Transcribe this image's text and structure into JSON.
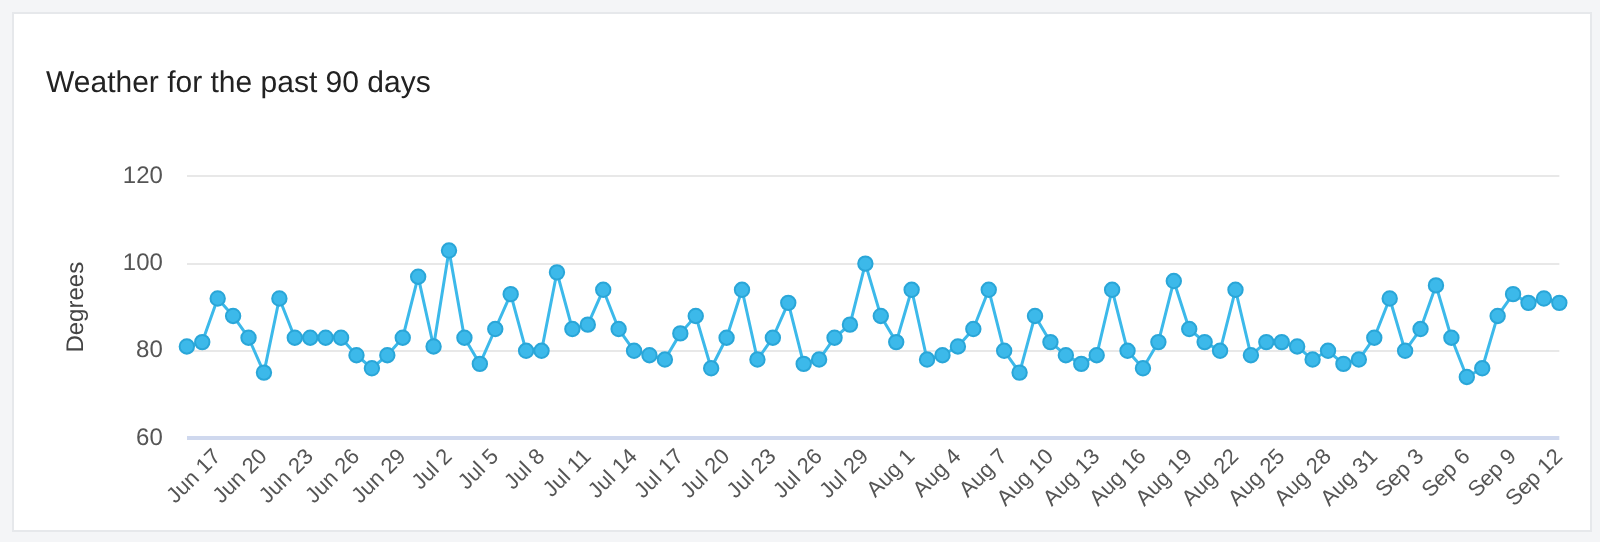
{
  "chart_data": {
    "type": "line",
    "title": "Weather for the past 90 days",
    "ylabel": "Degrees",
    "categories": [
      null,
      null,
      "Jun 17",
      null,
      null,
      "Jun 20",
      null,
      null,
      "Jun 23",
      null,
      null,
      "Jun 26",
      null,
      null,
      "Jun 29",
      null,
      null,
      "Jul 2",
      null,
      null,
      "Jul 5",
      null,
      null,
      "Jul 8",
      null,
      null,
      "Jul 11",
      null,
      null,
      "Jul 14",
      null,
      null,
      "Jul 17",
      null,
      null,
      "Jul 20",
      null,
      null,
      "Jul 23",
      null,
      null,
      "Jul 26",
      null,
      null,
      "Jul 29",
      null,
      null,
      "Aug 1",
      null,
      null,
      "Aug 4",
      null,
      null,
      "Aug 7",
      null,
      null,
      "Aug 10",
      null,
      null,
      "Aug 13",
      null,
      null,
      "Aug 16",
      null,
      null,
      "Aug 19",
      null,
      null,
      "Aug 22",
      null,
      null,
      "Aug 25",
      null,
      null,
      "Aug 28",
      null,
      null,
      "Aug 31",
      null,
      null,
      "Sep 3",
      null,
      null,
      "Sep 6",
      null,
      null,
      "Sep 9",
      null,
      null,
      "Sep 12"
    ],
    "series": [
      {
        "color": "#3cb9ea",
        "values": [
          81,
          82,
          92,
          88,
          83,
          75,
          92,
          83,
          83,
          83,
          83,
          79,
          76,
          79,
          83,
          97,
          81,
          103,
          83,
          77,
          85,
          93,
          80,
          80,
          98,
          85,
          86,
          94,
          85,
          80,
          79,
          78,
          84,
          88,
          76,
          83,
          94,
          78,
          83,
          91,
          77,
          78,
          83,
          86,
          100,
          88,
          82,
          94,
          78,
          79,
          81,
          85,
          94,
          80,
          75,
          88,
          82,
          79,
          77,
          79,
          94,
          80,
          76,
          82,
          96,
          85,
          82,
          80,
          94,
          79,
          82,
          82,
          81,
          78,
          80,
          77,
          78,
          83,
          92,
          80,
          85,
          95,
          83,
          74,
          76,
          88,
          93,
          91,
          92,
          91
        ]
      }
    ],
    "ylim": [
      60,
      120
    ],
    "yticks": [
      60,
      80,
      100,
      120
    ],
    "grid": "y",
    "marker": "circle",
    "line_style": "solid"
  }
}
